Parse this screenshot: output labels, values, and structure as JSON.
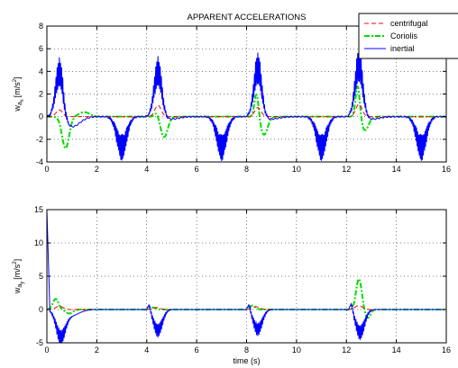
{
  "chart_data": [
    {
      "type": "line",
      "title": "APPARENT ACCELERATIONS",
      "ylabel_base": "w",
      "ylabel_sub": "a",
      "ylabel_subsub": "x",
      "ylabel_units": "[m/s",
      "ylabel_sup": "2",
      "ylabel_close": "]",
      "xlabel": "",
      "xlim": [
        0,
        16
      ],
      "ylim": [
        -4,
        8
      ],
      "xticks": [
        0,
        2,
        4,
        6,
        8,
        10,
        12,
        14,
        16
      ],
      "yticks": [
        -4,
        -2,
        0,
        2,
        4,
        6,
        8
      ],
      "grid": true,
      "legend_position": "top-right",
      "series": [
        {
          "name": "centrifugal",
          "color": "#ff0000",
          "style": "dashed"
        },
        {
          "name": "Coriolis",
          "color": "#00dd00",
          "style": "dashdot"
        },
        {
          "name": "inertial",
          "color": "#0000ff",
          "style": "solid"
        }
      ],
      "peaks": [
        0.5,
        4.45,
        8.45,
        12.5
      ],
      "troughs": [
        3.0,
        7.0,
        11.0,
        15.0
      ],
      "inertial_peak_values": [
        5.2,
        5.3,
        5.7,
        6.1
      ],
      "inertial_trough_values": [
        -3.9,
        -3.9,
        -3.9,
        -3.9
      ],
      "coriolis_dip_values": [
        -2.8,
        -1.8,
        -1.6,
        -1.2
      ],
      "coriolis_bump_values": [
        0.0,
        0.4,
        2.1,
        2.8
      ],
      "centrifugal_peak_values": [
        0.6,
        1.0,
        0.8,
        1.1
      ]
    },
    {
      "type": "line",
      "title": "",
      "ylabel_base": "w",
      "ylabel_sub": "a",
      "ylabel_subsub": "y",
      "ylabel_units": "[m/s",
      "ylabel_sup": "2",
      "ylabel_close": "]",
      "xlabel": "time (s)",
      "xlim": [
        0,
        16
      ],
      "ylim": [
        -5,
        15
      ],
      "xticks": [
        0,
        2,
        4,
        6,
        8,
        10,
        12,
        14,
        16
      ],
      "yticks": [
        -5,
        0,
        5,
        10,
        15
      ],
      "grid": true,
      "series": [
        {
          "name": "centrifugal",
          "color": "#ff0000",
          "style": "dashed"
        },
        {
          "name": "Coriolis",
          "color": "#00dd00",
          "style": "dashdot"
        },
        {
          "name": "inertial",
          "color": "#0000ff",
          "style": "solid"
        }
      ],
      "events": [
        0.5,
        4.4,
        8.4,
        12.5
      ],
      "inertial_trough_values": [
        -4.8,
        -4.2,
        -4.0,
        -4.6
      ],
      "inertial_peak_values": [
        15,
        1.0,
        1.0,
        1.2
      ],
      "coriolis_peak_values": [
        1.6,
        0.3,
        0.6,
        4.6
      ],
      "centrifugal_peak_values": [
        0.5,
        0.3,
        0.4,
        0.6
      ]
    }
  ]
}
